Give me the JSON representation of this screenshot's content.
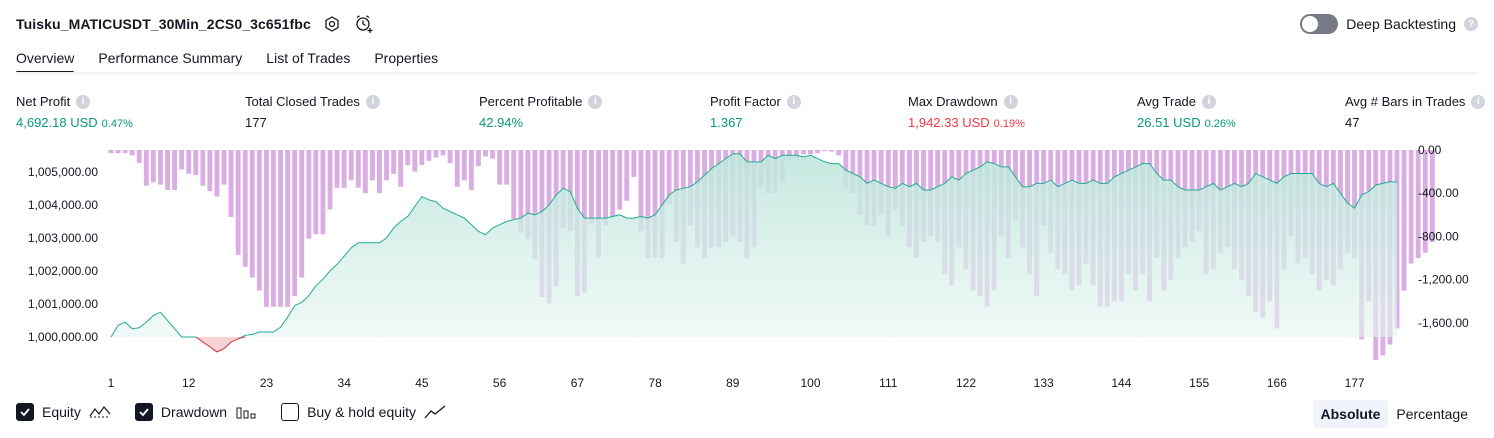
{
  "header": {
    "title": "Tuisku_MATICUSDT_30Min_2CS0_3c651fbc",
    "deep_backtesting_label": "Deep Backtesting"
  },
  "tabs": [
    "Overview",
    "Performance Summary",
    "List of Trades",
    "Properties"
  ],
  "metrics": [
    {
      "label": "Net Profit",
      "value": "4,692.18 USD",
      "pct": "0.47%",
      "color": "#089981"
    },
    {
      "label": "Total Closed Trades",
      "value": "177",
      "pct": "",
      "color": "#131722"
    },
    {
      "label": "Percent Profitable",
      "value": "42.94%",
      "pct": "",
      "color": "#089981"
    },
    {
      "label": "Profit Factor",
      "value": "1.367",
      "pct": "",
      "color": "#089981"
    },
    {
      "label": "Max Drawdown",
      "value": "1,942.33 USD",
      "pct": "0.19%",
      "color": "#f23645"
    },
    {
      "label": "Avg Trade",
      "value": "26.51 USD",
      "pct": "0.26%",
      "color": "#089981"
    },
    {
      "label": "Avg # Bars in Trades",
      "value": "47",
      "pct": "",
      "color": "#131722"
    }
  ],
  "legend": {
    "equity": "Equity",
    "drawdown": "Drawdown",
    "buy_hold": "Buy & hold equity",
    "equity_checked": true,
    "drawdown_checked": true,
    "buy_hold_checked": false
  },
  "modes": {
    "absolute": "Absolute",
    "percentage": "Percentage",
    "selected": "Absolute"
  },
  "colors": {
    "equity_line": "#22ab94",
    "equity_fill": "#d5efe8",
    "equity_negative": "#f23645",
    "drawdown_bar": "#ce93d8",
    "text": "#131722"
  },
  "chart_data": {
    "type": "area",
    "x_ticks": [
      1,
      12,
      23,
      34,
      45,
      56,
      67,
      78,
      89,
      100,
      111,
      122,
      133,
      144,
      155,
      166,
      177
    ],
    "left_axis": {
      "ticks": [
        "1,005,000.00",
        "1,004,000.00",
        "1,003,000.00",
        "1,002,000.00",
        "1,001,000.00",
        "1,000,000.00"
      ],
      "ylim": [
        999400,
        1005600
      ]
    },
    "right_axis": {
      "ticks": [
        "0.00",
        "-400.00",
        "-800.00",
        "-1,200.00",
        "-1,600.00"
      ],
      "ylim": [
        -1942.33,
        0
      ]
    },
    "series": [
      {
        "name": "Equity",
        "values": [
          1000000,
          1000350,
          1000450,
          1000250,
          1000280,
          1000450,
          1000650,
          1000750,
          1000500,
          1000250,
          1000000,
          1000000,
          1000000,
          999850,
          999700,
          999550,
          999650,
          999850,
          999950,
          1000050,
          1000080,
          1000150,
          1000150,
          1000150,
          1000300,
          1000600,
          1000950,
          1001050,
          1001250,
          1001550,
          1001750,
          1002000,
          1002200,
          1002450,
          1002700,
          1002850,
          1002850,
          1002850,
          1002850,
          1003000,
          1003300,
          1003500,
          1003650,
          1003950,
          1004250,
          1004150,
          1004100,
          1003900,
          1003800,
          1003700,
          1003600,
          1003400,
          1003200,
          1003100,
          1003300,
          1003400,
          1003500,
          1003550,
          1003600,
          1003750,
          1003700,
          1003800,
          1004000,
          1004300,
          1004500,
          1004400,
          1003900,
          1003600,
          1003600,
          1003600,
          1003600,
          1003650,
          1003700,
          1003600,
          1003600,
          1003650,
          1003600,
          1003700,
          1004000,
          1004300,
          1004450,
          1004500,
          1004550,
          1004700,
          1004900,
          1005100,
          1005250,
          1005400,
          1005550,
          1005550,
          1005300,
          1005300,
          1005300,
          1005500,
          1005400,
          1005500,
          1005500,
          1005500,
          1005450,
          1005500,
          1005400,
          1005300,
          1005250,
          1005250,
          1005050,
          1004950,
          1004850,
          1004650,
          1004750,
          1004650,
          1004550,
          1004500,
          1004650,
          1004550,
          1004650,
          1004450,
          1004450,
          1004550,
          1004650,
          1004850,
          1004750,
          1004950,
          1005050,
          1005150,
          1005300,
          1005250,
          1005150,
          1005150,
          1004850,
          1004550,
          1004550,
          1004650,
          1004650,
          1004750,
          1004550,
          1004650,
          1004750,
          1004650,
          1004650,
          1004750,
          1004650,
          1004650,
          1004850,
          1004950,
          1005050,
          1005150,
          1005250,
          1005250,
          1004950,
          1004750,
          1004750,
          1004550,
          1004450,
          1004450,
          1004450,
          1004550,
          1004650,
          1004450,
          1004550,
          1004650,
          1004550,
          1004650,
          1004950,
          1004850,
          1004750,
          1004650,
          1004850,
          1004950,
          1004950,
          1004950,
          1004950,
          1004650,
          1004550,
          1004650,
          1004350,
          1004050,
          1003900,
          1004300,
          1004400,
          1004600,
          1004650,
          1004700,
          1004690
        ]
      },
      {
        "name": "Drawdown",
        "values": [
          -30,
          -30,
          -30,
          -50,
          -120,
          -330,
          -300,
          -320,
          -370,
          -370,
          -180,
          -220,
          -230,
          -330,
          -380,
          -430,
          -320,
          -620,
          -970,
          -1080,
          -1180,
          -1300,
          -1450,
          -1450,
          -1450,
          -1450,
          -1350,
          -1180,
          -820,
          -780,
          -780,
          -550,
          -350,
          -350,
          -280,
          -350,
          -400,
          -280,
          -400,
          -280,
          -220,
          -340,
          -140,
          -200,
          -140,
          -100,
          -70,
          -50,
          -120,
          -340,
          -280,
          -370,
          -150,
          -60,
          -80,
          -320,
          -320,
          -640,
          -760,
          -820,
          -1010,
          -1360,
          -1420,
          -1260,
          -720,
          -750,
          -1350,
          -1320,
          -690,
          -1000,
          -700,
          -620,
          -550,
          -470,
          -250,
          -750,
          -1000,
          -1000,
          -1000,
          -500,
          -850,
          -1050,
          -700,
          -900,
          -1000,
          -900,
          -900,
          -850,
          -800,
          -850,
          -1000,
          -900,
          -350,
          -400,
          -400,
          -300,
          -100,
          -80,
          -40,
          -40,
          -30,
          -10,
          -15,
          -50,
          -350,
          -400,
          -600,
          -700,
          -700,
          -600,
          -800,
          -550,
          -700,
          -900,
          -1000,
          -850,
          -800,
          -850,
          -1150,
          -1250,
          -900,
          -1100,
          -1300,
          -1350,
          -1450,
          -1300,
          -800,
          -1000,
          -650,
          -900,
          -1150,
          -1350,
          -700,
          -950,
          -1100,
          -1150,
          -1300,
          -1250,
          -1050,
          -1250,
          -1450,
          -1450,
          -1400,
          -1400,
          -1150,
          -1300,
          -1150,
          -1400,
          -1000,
          -1300,
          -1200,
          -1000,
          -900,
          -850,
          -750,
          -1150,
          -1100,
          -950,
          -900,
          -1100,
          -1200,
          -1350,
          -1500,
          -1550,
          -1400,
          -1650,
          -1100,
          -800,
          -1050,
          -1000,
          -1150,
          -1300,
          -1200,
          -1250,
          -1100,
          -950,
          -1000,
          -1750,
          -1400,
          -1942.33,
          -1900,
          -1800,
          -1650,
          -1300,
          -1050,
          -1000,
          -950,
          -850
        ]
      }
    ]
  }
}
